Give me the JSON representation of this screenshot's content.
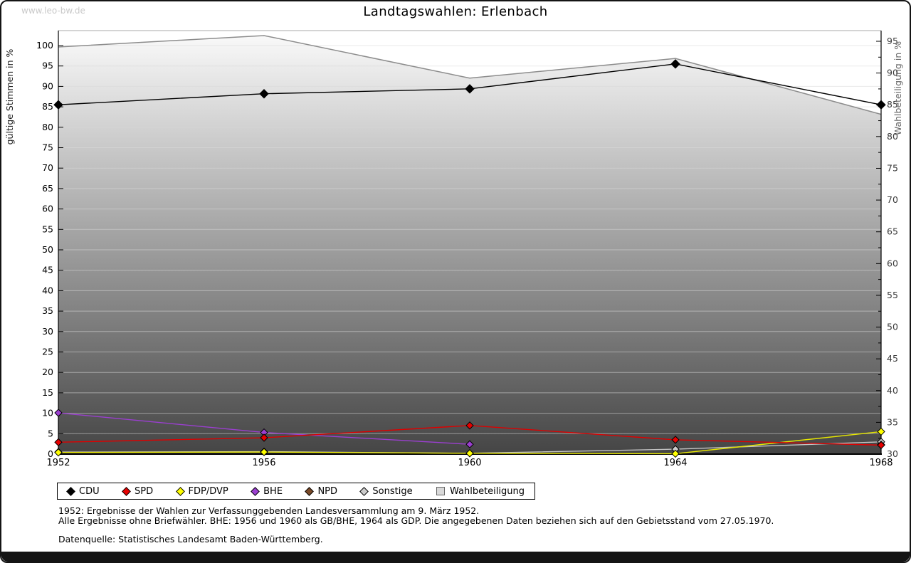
{
  "page": {
    "watermark": "www.leo-bw.de",
    "title": "Landtagswahlen: Erlenbach"
  },
  "footer": {
    "note1": "1952: Ergebnisse der Wahlen zur Verfassunggebenden Landesversammlung am 9. März 1952.",
    "note2": "Alle Ergebnisse ohne Briefwähler. BHE: 1956 und 1960 als GB/BHE, 1964 als GDP. Die angegebenen Daten beziehen sich auf den Gebietsstand vom 27.05.1970.",
    "source": "Datenquelle: Statistisches Landesamt Baden-Württemberg."
  },
  "chart_data": {
    "type": "line",
    "title": "Landtagswahlen: Erlenbach",
    "x": [
      1952,
      1956,
      1960,
      1964,
      1968
    ],
    "left_axis": {
      "label": "gültige Stimmen in %",
      "min": 0,
      "max": 100,
      "step": 5,
      "ticks": [
        0,
        5,
        10,
        15,
        20,
        25,
        30,
        35,
        40,
        45,
        50,
        55,
        60,
        65,
        70,
        75,
        80,
        85,
        90,
        95,
        100
      ]
    },
    "right_axis": {
      "label": "Wahlbeteiligung in %",
      "min": 30,
      "max": 95,
      "step": 5,
      "ticks": [
        30,
        35,
        40,
        45,
        50,
        55,
        60,
        65,
        70,
        75,
        80,
        85,
        90,
        95
      ]
    },
    "grid": true,
    "legend_position": "bottom",
    "series": [
      {
        "name": "Sonstige",
        "color": "#cccccc",
        "line_color": "#c4c4c4",
        "axis": "left",
        "marker": "diamond",
        "values": [
          0.5,
          0.6,
          0.2,
          1.2,
          3.0
        ]
      },
      {
        "name": "FDP/DVP",
        "color": "#ffff00",
        "line_color": "#e6e600",
        "axis": "left",
        "marker": "diamond",
        "values": [
          0.4,
          0.5,
          0.2,
          0.1,
          5.5
        ]
      },
      {
        "name": "BHE",
        "color": "#9b3fd0",
        "line_color": "#9b3fd0",
        "axis": "left",
        "marker": "diamond",
        "values": [
          10.1,
          5.3,
          2.4,
          null,
          null
        ]
      },
      {
        "name": "NPD",
        "color": "#7a4a28",
        "line_color": "#7a4a28",
        "axis": "left",
        "marker": "diamond",
        "values": [
          null,
          null,
          null,
          null,
          2.3
        ]
      },
      {
        "name": "SPD",
        "color": "#e60000",
        "line_color": "#dd0000",
        "axis": "left",
        "marker": "diamond",
        "values": [
          2.9,
          4.0,
          7.0,
          3.5,
          2.2
        ]
      },
      {
        "name": "CDU",
        "color": "#000000",
        "line_color": "#000000",
        "axis": "left",
        "marker": "diamond",
        "values": [
          85.5,
          88.2,
          89.4,
          95.5,
          85.5
        ]
      },
      {
        "name": "Wahlbeteiligung",
        "color": "#d9d9d9",
        "line_color": "#8c8c8c",
        "axis": "right",
        "marker": "square",
        "area": true,
        "values": [
          94.1,
          95.9,
          89.2,
          92.3,
          83.5
        ]
      }
    ],
    "legend_order": [
      "CDU",
      "SPD",
      "FDP/DVP",
      "BHE",
      "NPD",
      "Sonstige",
      "Wahlbeteiligung"
    ]
  }
}
